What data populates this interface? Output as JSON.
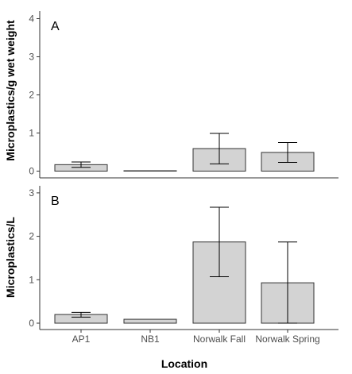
{
  "chart_data": {
    "type": "bar",
    "xlabel": "Location",
    "categories": [
      "AP1",
      "NB1",
      "Norwalk Fall",
      "Norwalk Spring"
    ],
    "bar_fill": "#d3d3d3",
    "bar_stroke": "#333333",
    "grid": false,
    "panels": [
      {
        "tag": "A",
        "ylabel": "Microplastics/g wet weight",
        "ylim": [
          0,
          4
        ],
        "yticks": [
          0,
          1,
          2,
          3,
          4
        ],
        "values": [
          0.17,
          0.0,
          0.59,
          0.49
        ],
        "error_low": [
          0.1,
          0.0,
          0.19,
          0.23
        ],
        "error_high": [
          0.24,
          0.0,
          0.99,
          0.75
        ]
      },
      {
        "tag": "B",
        "ylabel": "Microplastics/L",
        "ylim": [
          0,
          3
        ],
        "yticks": [
          0,
          1,
          2,
          3
        ],
        "values": [
          0.2,
          0.09,
          1.87,
          0.93
        ],
        "error_low": [
          0.14,
          0.09,
          1.07,
          0.0
        ],
        "error_high": [
          0.25,
          0.09,
          2.67,
          1.87
        ]
      }
    ]
  }
}
